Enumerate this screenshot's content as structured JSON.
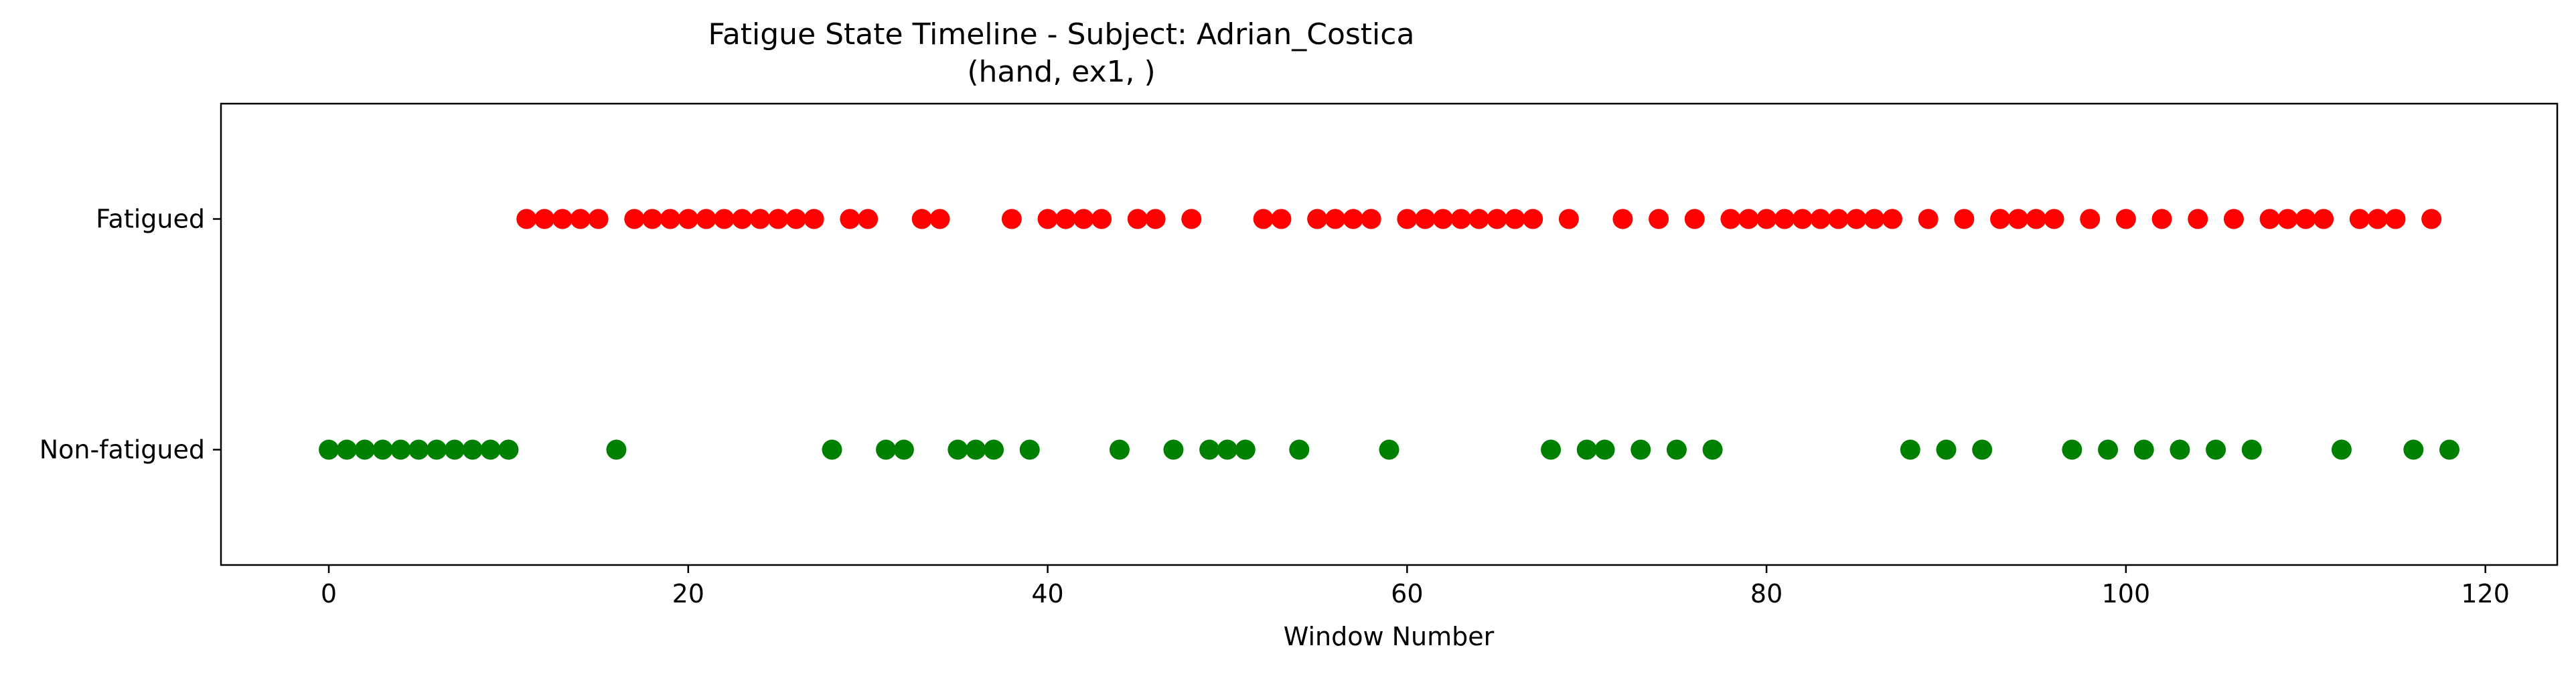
{
  "chart_data": {
    "type": "scatter",
    "title": "Fatigue State Timeline - Subject: Adrian_Costica",
    "subtitle": "(hand, ex1, )",
    "xlabel": "Window Number",
    "ylabel": "",
    "xlim": [
      -6,
      124
    ],
    "ylim": [
      -0.5,
      1.5
    ],
    "x_ticks": [
      0,
      20,
      40,
      60,
      80,
      100,
      120
    ],
    "y_ticks": [
      {
        "value": 0,
        "label": "Non-fatigued"
      },
      {
        "value": 1,
        "label": "Fatigued"
      }
    ],
    "grid": false,
    "series": [
      {
        "color": "#ff0000",
        "y": 1,
        "x": [
          11,
          12,
          13,
          14,
          15,
          17,
          18,
          19,
          20,
          21,
          22,
          23,
          24,
          25,
          26,
          27,
          29,
          30,
          33,
          34,
          38,
          40,
          41,
          42,
          43,
          45,
          46,
          48,
          52,
          53,
          55,
          56,
          57,
          58,
          60,
          61,
          62,
          63,
          64,
          65,
          66,
          67,
          69,
          72,
          74,
          76,
          78,
          79,
          80,
          81,
          82,
          83,
          84,
          85,
          86,
          87,
          89,
          91,
          93,
          94,
          95,
          96,
          98,
          100,
          102,
          104,
          106,
          108,
          109,
          110,
          111,
          113,
          114,
          115,
          117
        ]
      },
      {
        "color": "#008000",
        "y": 0,
        "x": [
          0,
          1,
          2,
          3,
          4,
          5,
          6,
          7,
          8,
          9,
          10,
          16,
          28,
          31,
          32,
          35,
          36,
          37,
          39,
          44,
          47,
          49,
          50,
          51,
          54,
          59,
          68,
          70,
          71,
          73,
          75,
          77,
          88,
          90,
          92,
          97,
          99,
          101,
          103,
          105,
          107,
          112,
          116,
          118
        ]
      }
    ]
  }
}
